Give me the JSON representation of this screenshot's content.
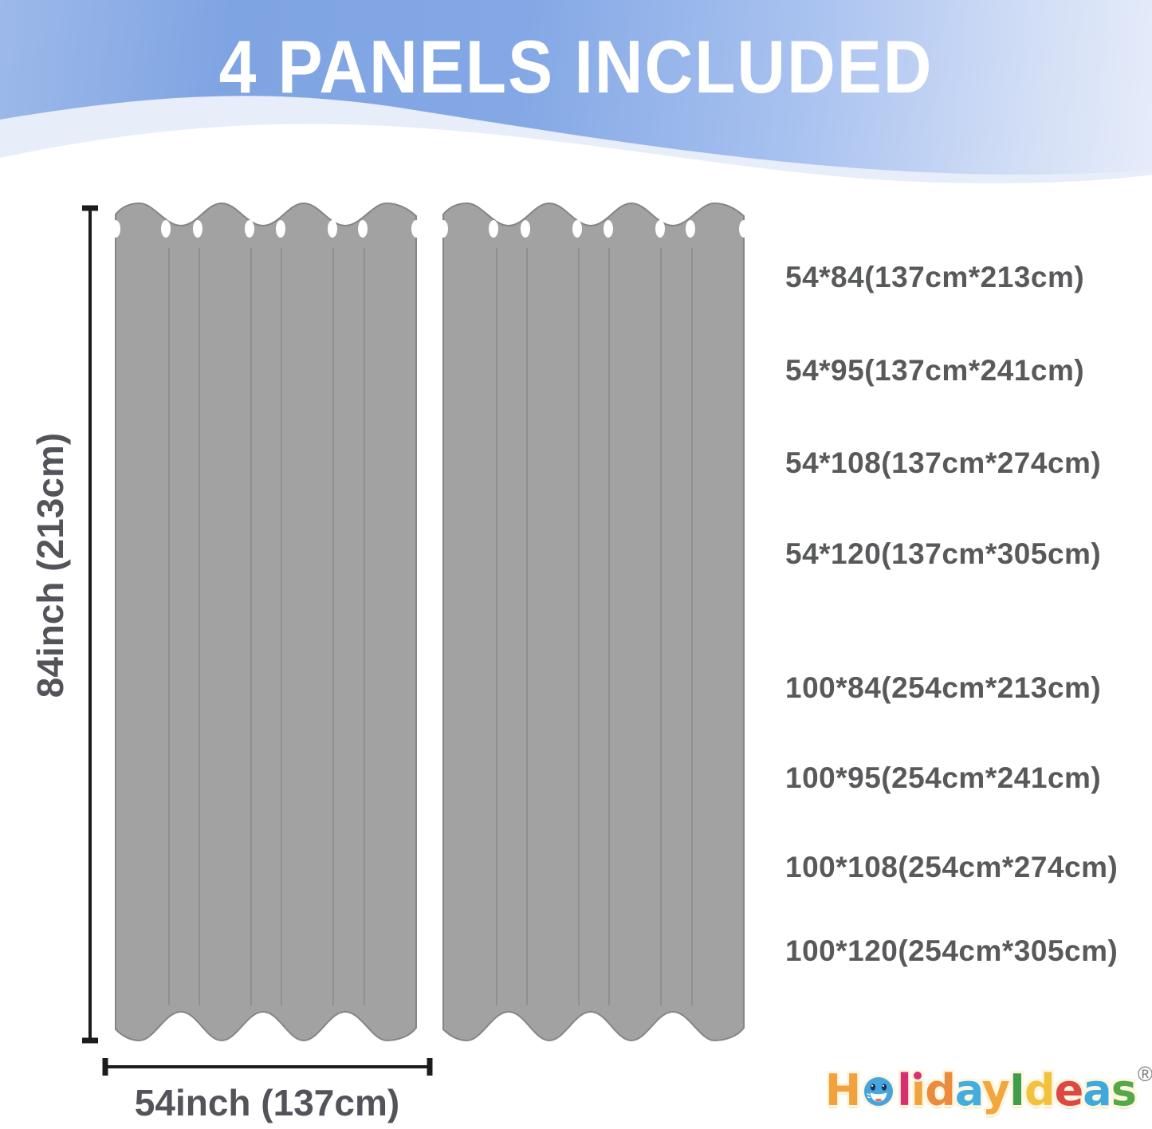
{
  "banner": {
    "title": "4 PANELS INCLUDED",
    "background_colors": [
      "#7fa4e2",
      "#aac3f0",
      "#e6ecfa"
    ],
    "title_color": "#ffffff"
  },
  "diagram": {
    "height_label": "84inch (213cm)",
    "width_label": "54inch (137cm)",
    "panel_count_shown": 2,
    "grommets_visible_per_panel": 8,
    "colors": {
      "curtain_fill": "#a2a2a2",
      "curtain_outline": "#858585",
      "fold_line": "#8c8c8c",
      "grommet": "#ffffff",
      "dimension_line": "#1c1c1c"
    }
  },
  "sizes": {
    "group1": [
      "54*84(137cm*213cm)",
      "54*95(137cm*241cm)",
      "54*108(137cm*274cm)",
      "54*120(137cm*305cm)"
    ],
    "group2": [
      "100*84(254cm*213cm)",
      "100*95(254cm*241cm)",
      "100*108(254cm*274cm)",
      "100*120(254cm*305cm)"
    ],
    "text_color": "#58595b"
  },
  "logo": {
    "name": "HolidayIdeas",
    "registered_mark": "®",
    "letters": [
      {
        "ch": "H",
        "color": "#F2A13C"
      },
      {
        "ch": "o",
        "color": "#47A5DC",
        "type": "smiley"
      },
      {
        "ch": "l",
        "color": "#D62E6F"
      },
      {
        "ch": "i",
        "color": "#F0A43C",
        "type": "i-pink-dot",
        "dot_color": "#D6336F"
      },
      {
        "ch": "d",
        "color": "#EA8B3D"
      },
      {
        "ch": "a",
        "color": "#45ADDE"
      },
      {
        "ch": "y",
        "color": "#F2A63C"
      },
      {
        "ch": "I",
        "color": "#3F9D4C"
      },
      {
        "ch": "d",
        "color": "#F2C23E"
      },
      {
        "ch": "e",
        "color": "#DC4943"
      },
      {
        "ch": "a",
        "color": "#3FA8DC"
      },
      {
        "ch": "s",
        "color": "#55A848"
      }
    ],
    "smiley_colors": {
      "face": "#47A5DC",
      "eyes": "#16355c",
      "mouth": "#ffffff",
      "tongue": "#e8635a"
    }
  }
}
